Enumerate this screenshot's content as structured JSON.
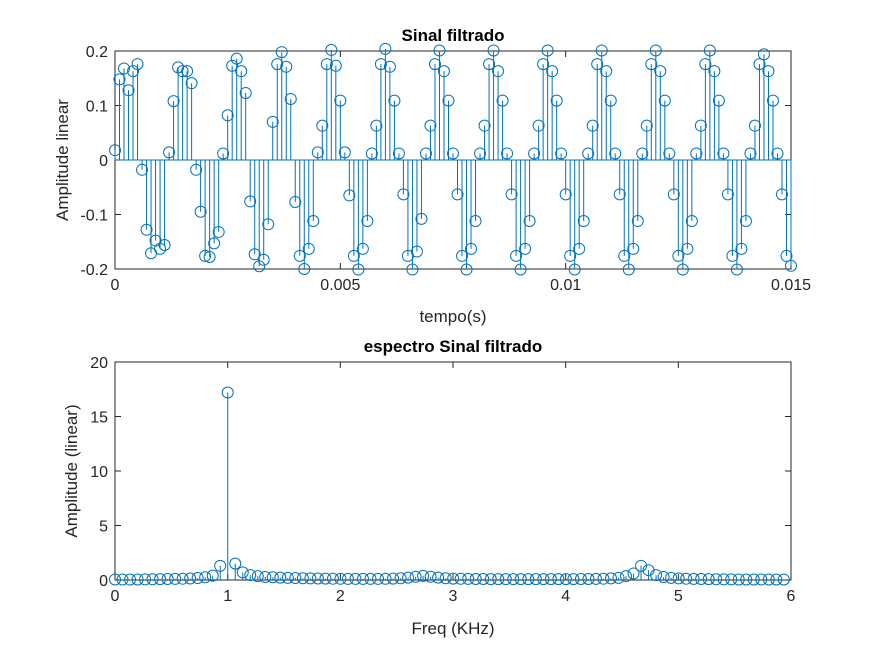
{
  "chart_data": [
    {
      "type": "stem",
      "title": "Sinal filtrado",
      "xlabel": "tempo(s)",
      "ylabel": "Amplitude linear",
      "xlim": [
        0,
        0.015
      ],
      "ylim": [
        -0.2,
        0.2
      ],
      "xticks": [
        0,
        0.005,
        0.01,
        0.015
      ],
      "xtick_labels": [
        "0",
        "0.005",
        "0.01",
        "0.015"
      ],
      "yticks": [
        -0.2,
        -0.1,
        0,
        0.1,
        0.2
      ],
      "ytick_labels": [
        "-0.2",
        "-0.1",
        "0",
        "0.1",
        "0.2"
      ],
      "color": "#0072BD",
      "series": [
        {
          "x_start": 0,
          "x_step": 0.0001,
          "values": [
            0.018,
            0.148,
            0.168,
            0.128,
            0.163,
            0.176,
            -0.018,
            -0.128,
            -0.171,
            -0.148,
            -0.163,
            -0.156,
            0.014,
            0.108,
            0.17,
            0.163,
            0.163,
            0.141,
            -0.018,
            -0.095,
            -0.176,
            -0.178,
            -0.153,
            -0.132,
            0.012,
            0.082,
            0.173,
            0.186,
            0.163,
            0.123,
            -0.076,
            -0.173,
            -0.195,
            -0.183,
            -0.118,
            0.07,
            0.176,
            0.198,
            0.171,
            0.112,
            -0.077,
            -0.176,
            -0.2,
            -0.163,
            -0.112,
            0.014,
            0.063,
            0.176,
            0.202,
            0.173,
            0.109,
            0.014,
            -0.065,
            -0.176,
            -0.201,
            -0.163,
            -0.112,
            0.012,
            0.063,
            0.176,
            0.204,
            0.171,
            0.109,
            0.012,
            -0.063,
            -0.176,
            -0.201,
            -0.168,
            -0.108,
            0.012,
            0.063,
            0.176,
            0.201,
            0.163,
            0.109,
            0.012,
            -0.063,
            -0.176,
            -0.201,
            -0.163,
            -0.112,
            0.012,
            0.063,
            0.176,
            0.201,
            0.163,
            0.109,
            0.012,
            -0.063,
            -0.176,
            -0.201,
            -0.163,
            -0.112,
            0.012,
            0.063,
            0.176,
            0.201,
            0.163,
            0.109,
            0.012,
            -0.063,
            -0.176,
            -0.201,
            -0.163,
            -0.112,
            0.012,
            0.063,
            0.176,
            0.201,
            0.163,
            0.109,
            0.012,
            -0.063,
            -0.176,
            -0.201,
            -0.163,
            -0.112,
            0.012,
            0.063,
            0.176,
            0.201,
            0.163,
            0.109,
            0.012,
            -0.063,
            -0.176,
            -0.201,
            -0.163,
            -0.112,
            0.012,
            0.063,
            0.176,
            0.201,
            0.163,
            0.109,
            0.012,
            -0.063,
            -0.176,
            -0.201,
            -0.163,
            -0.112,
            0.012,
            0.063,
            0.176,
            0.194,
            0.163,
            0.109,
            0.012,
            -0.063,
            -0.176,
            -0.194,
            -0.163,
            -0.112,
            0.012,
            0.063,
            0.176,
            0.194,
            0.163,
            0.114,
            0.012,
            -0.073,
            -0.163,
            -0.19,
            -0.163,
            -0.118,
            0.012
          ]
        }
      ]
    },
    {
      "type": "stem",
      "title": "espectro Sinal filtrado",
      "xlabel": "Freq (KHz)",
      "ylabel": "Amplitude (linear)",
      "xlim": [
        0,
        6
      ],
      "ylim": [
        0,
        20
      ],
      "xticks": [
        0,
        1,
        2,
        3,
        4,
        5,
        6
      ],
      "xtick_labels": [
        "0",
        "1",
        "2",
        "3",
        "4",
        "5",
        "6"
      ],
      "yticks": [
        0,
        5,
        10,
        15,
        20
      ],
      "ytick_labels": [
        "0",
        "5",
        "10",
        "15",
        "20"
      ],
      "color": "#0072BD",
      "series": [
        {
          "x_start": 0,
          "x_step": 0.0667,
          "values": [
            0.05,
            0.05,
            0.05,
            0.05,
            0.06,
            0.07,
            0.08,
            0.09,
            0.1,
            0.12,
            0.14,
            0.18,
            0.25,
            0.4,
            1.3,
            17.2,
            1.5,
            0.7,
            0.45,
            0.35,
            0.28,
            0.25,
            0.22,
            0.2,
            0.18,
            0.16,
            0.15,
            0.14,
            0.13,
            0.12,
            0.11,
            0.1,
            0.1,
            0.1,
            0.1,
            0.1,
            0.11,
            0.13,
            0.16,
            0.22,
            0.3,
            0.38,
            0.3,
            0.22,
            0.16,
            0.13,
            0.11,
            0.1,
            0.09,
            0.09,
            0.08,
            0.08,
            0.08,
            0.08,
            0.08,
            0.08,
            0.08,
            0.08,
            0.08,
            0.08,
            0.08,
            0.08,
            0.09,
            0.09,
            0.1,
            0.12,
            0.15,
            0.2,
            0.35,
            0.6,
            1.3,
            0.9,
            0.45,
            0.28,
            0.2,
            0.15,
            0.12,
            0.1,
            0.09,
            0.08,
            0.07,
            0.06,
            0.06,
            0.05,
            0.05,
            0.05,
            0.05,
            0.05,
            0.05,
            0.05
          ]
        }
      ]
    }
  ]
}
